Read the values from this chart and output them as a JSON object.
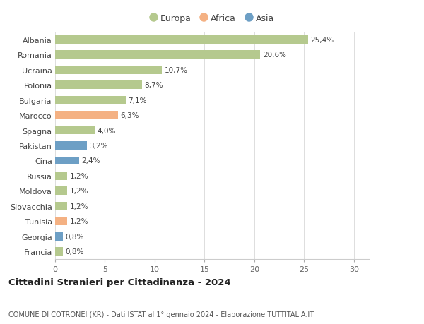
{
  "countries": [
    "Albania",
    "Romania",
    "Ucraina",
    "Polonia",
    "Bulgaria",
    "Marocco",
    "Spagna",
    "Pakistan",
    "Cina",
    "Russia",
    "Moldova",
    "Slovacchia",
    "Tunisia",
    "Georgia",
    "Francia"
  ],
  "values": [
    25.4,
    20.6,
    10.7,
    8.7,
    7.1,
    6.3,
    4.0,
    3.2,
    2.4,
    1.2,
    1.2,
    1.2,
    1.2,
    0.8,
    0.8
  ],
  "labels": [
    "25,4%",
    "20,6%",
    "10,7%",
    "8,7%",
    "7,1%",
    "6,3%",
    "4,0%",
    "3,2%",
    "2,4%",
    "1,2%",
    "1,2%",
    "1,2%",
    "1,2%",
    "0,8%",
    "0,8%"
  ],
  "continents": [
    "Europa",
    "Europa",
    "Europa",
    "Europa",
    "Europa",
    "Africa",
    "Europa",
    "Asia",
    "Asia",
    "Europa",
    "Europa",
    "Europa",
    "Africa",
    "Asia",
    "Europa"
  ],
  "colors": {
    "Europa": "#b5c98e",
    "Africa": "#f4b183",
    "Asia": "#6d9fc5"
  },
  "title": "Cittadini Stranieri per Cittadinanza - 2024",
  "subtitle": "COMUNE DI COTRONEI (KR) - Dati ISTAT al 1° gennaio 2024 - Elaborazione TUTTITALIA.IT",
  "xlabel_ticks": [
    0,
    5,
    10,
    15,
    20,
    25,
    30
  ],
  "xlim": [
    0,
    31.5
  ],
  "background_color": "#ffffff",
  "legend_labels": [
    "Europa",
    "Africa",
    "Asia"
  ],
  "legend_colors": [
    "#b5c98e",
    "#f4b183",
    "#6d9fc5"
  ]
}
